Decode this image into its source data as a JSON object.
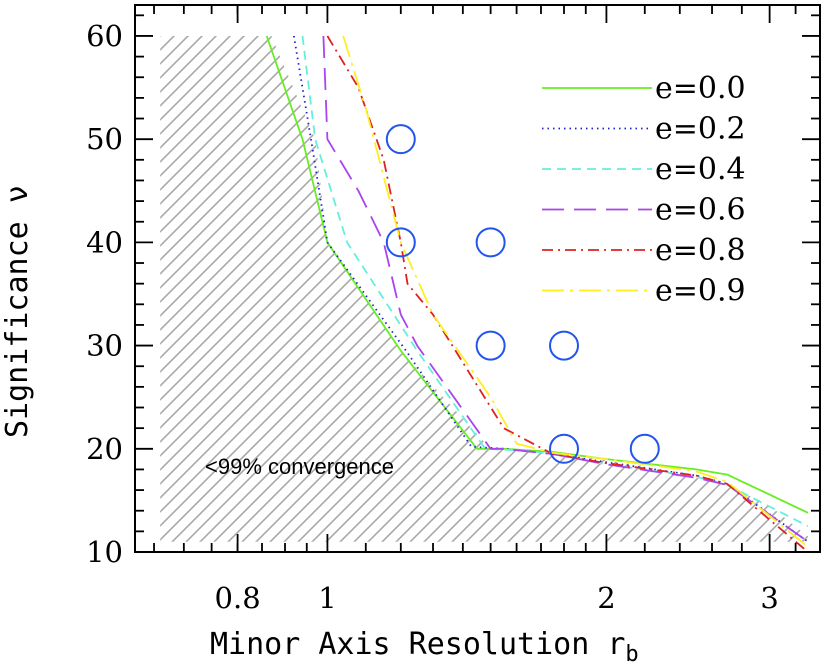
{
  "chart_data": {
    "type": "line",
    "xlabel": "Minor Axis Resolution r",
    "xlabel_sub": "b",
    "ylabel": "Significance ν",
    "x_scale": "log",
    "xlim": [
      0.62,
      3.4
    ],
    "ylim": [
      10,
      63
    ],
    "x_ticks": [
      0.8,
      1,
      2,
      3
    ],
    "x_tick_labels": [
      "0.8",
      "1",
      "2",
      "3"
    ],
    "y_ticks": [
      10,
      20,
      30,
      40,
      50,
      60
    ],
    "y_tick_labels": [
      "10",
      "20",
      "30",
      "40",
      "50",
      "60"
    ],
    "legend_position": "top-right",
    "region": {
      "label": "<99% convergence",
      "hatch_color": "#a8a8a8",
      "boundary": [
        [
          0.66,
          60
        ],
        [
          0.87,
          60
        ],
        [
          0.97,
          50
        ],
        [
          1.0,
          40
        ],
        [
          1.2,
          29.5
        ],
        [
          1.5,
          20
        ],
        [
          1.75,
          19.7
        ],
        [
          2.2,
          18.3
        ],
        [
          2.7,
          16.5
        ],
        [
          3.0,
          14.5
        ],
        [
          3.3,
          11.5
        ],
        [
          3.3,
          11
        ],
        [
          0.66,
          11
        ]
      ]
    },
    "series": [
      {
        "name": "e=0.0",
        "color": "#66ee22",
        "dash": "solid",
        "x": [
          0.86,
          0.94,
          1.0,
          1.2,
          1.45,
          1.55,
          1.75,
          2.0,
          2.5,
          2.7,
          3.3
        ],
        "y": [
          60,
          50,
          40,
          29.5,
          20,
          20,
          19.7,
          19,
          18,
          17.5,
          13.8
        ]
      },
      {
        "name": "e=0.2",
        "color": "#2222cc",
        "dash": "dotted",
        "x": [
          0.92,
          0.96,
          1.0,
          1.22,
          1.43,
          1.55,
          1.75,
          2.0,
          2.5,
          2.7,
          3.3
        ],
        "y": [
          60,
          50,
          40,
          29.3,
          20.2,
          20,
          19.5,
          18.7,
          17.4,
          16.6,
          11
        ],
        "markers": [
          [
            0.92,
            60
          ]
        ]
      },
      {
        "name": "e=0.4",
        "color": "#66eedd",
        "dash": "dashed",
        "x": [
          0.94,
          0.97,
          1.05,
          1.25,
          1.48,
          1.65,
          1.8,
          2.0,
          2.5,
          2.7,
          3.3
        ],
        "y": [
          60,
          50,
          40,
          29.5,
          20,
          19.8,
          19.3,
          18.5,
          17.3,
          16.5,
          12.5
        ]
      },
      {
        "name": "e=0.6",
        "color": "#aa44ee",
        "dash": "longdash",
        "x": [
          0.99,
          1.0,
          1.08,
          1.15,
          1.2,
          1.25,
          1.5,
          1.55,
          1.75,
          2.0,
          2.5,
          2.7,
          3.3
        ],
        "y": [
          60,
          50,
          45,
          40,
          33,
          30,
          20,
          20,
          19.5,
          18.5,
          17.2,
          16.5,
          11
        ]
      },
      {
        "name": "e=0.8",
        "color": "#dd2222",
        "dash": "dashdot",
        "x": [
          1.0,
          1.08,
          1.15,
          1.2,
          1.22,
          1.3,
          1.55,
          1.75,
          2.0,
          2.5,
          2.7,
          3.3
        ],
        "y": [
          60,
          55,
          48,
          40,
          36,
          33,
          22,
          19.5,
          18.6,
          17.4,
          16.6,
          10
        ]
      },
      {
        "name": "e=0.9",
        "color": "#ffee22",
        "dash": "longdashdot",
        "x": [
          1.04,
          1.1,
          1.2,
          1.3,
          1.5,
          1.6,
          1.75,
          2.0,
          2.5,
          2.7,
          3.3
        ],
        "y": [
          60,
          53,
          40,
          33,
          25,
          20.5,
          19.6,
          19,
          17.8,
          16.8,
          10.5
        ]
      }
    ],
    "circles": {
      "color": "#2255ee",
      "points": [
        [
          1.2,
          50
        ],
        [
          1.2,
          40
        ],
        [
          1.5,
          40
        ],
        [
          1.5,
          30
        ],
        [
          1.8,
          30
        ],
        [
          1.8,
          20
        ],
        [
          2.2,
          20
        ]
      ]
    }
  }
}
